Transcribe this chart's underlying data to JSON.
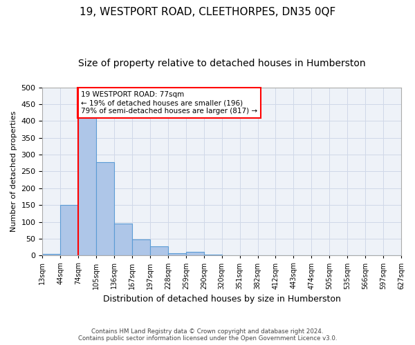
{
  "title1": "19, WESTPORT ROAD, CLEETHORPES, DN35 0QF",
  "title2": "Size of property relative to detached houses in Humberston",
  "xlabel": "Distribution of detached houses by size in Humberston",
  "ylabel": "Number of detached properties",
  "footer1": "Contains HM Land Registry data © Crown copyright and database right 2024.",
  "footer2": "Contains public sector information licensed under the Open Government Licence v3.0.",
  "bin_labels": [
    "13sqm",
    "44sqm",
    "74sqm",
    "105sqm",
    "136sqm",
    "167sqm",
    "197sqm",
    "228sqm",
    "259sqm",
    "290sqm",
    "320sqm",
    "351sqm",
    "382sqm",
    "412sqm",
    "443sqm",
    "474sqm",
    "505sqm",
    "535sqm",
    "566sqm",
    "597sqm",
    "627sqm"
  ],
  "bar_heights": [
    5,
    150,
    420,
    278,
    95,
    48,
    27,
    6,
    10,
    3,
    0,
    0,
    0,
    0,
    0,
    0,
    0,
    0,
    0,
    0
  ],
  "bar_color": "#aec6e8",
  "bar_edge_color": "#5b9bd5",
  "property_line_index": 2,
  "annotation_text": "19 WESTPORT ROAD: 77sqm\n← 19% of detached houses are smaller (196)\n79% of semi-detached houses are larger (817) →",
  "annotation_box_color": "white",
  "annotation_box_edge_color": "red",
  "vline_color": "red",
  "ylim": [
    0,
    500
  ],
  "yticks": [
    0,
    50,
    100,
    150,
    200,
    250,
    300,
    350,
    400,
    450,
    500
  ],
  "grid_color": "#d0d8e8",
  "background_color": "#eef2f8",
  "title1_fontsize": 11,
  "title2_fontsize": 10,
  "n_bins": 20
}
